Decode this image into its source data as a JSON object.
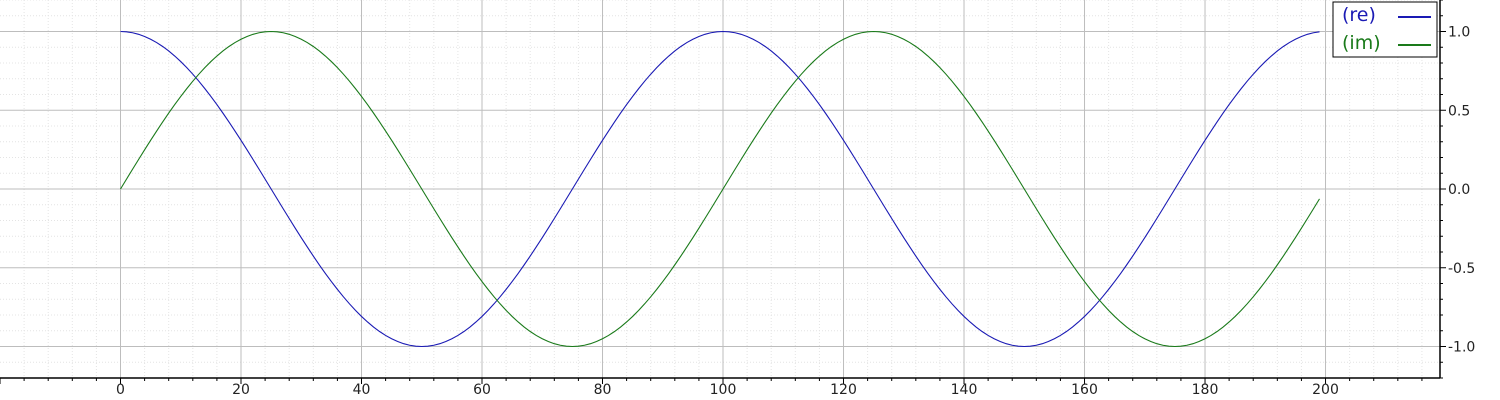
{
  "chart_data": {
    "type": "line",
    "x": {
      "start": 0,
      "end": 199,
      "step": 1
    },
    "series": [
      {
        "name": "(re)",
        "function": "cos(2*pi*x/100)",
        "color": "#1a1ab4"
      },
      {
        "name": "(im)",
        "function": "sin(2*pi*x/100)",
        "color": "#1a7a1a"
      }
    ],
    "xlim": [
      -20,
      219
    ],
    "ylim": [
      -1.2,
      1.2
    ],
    "x_ticks": [
      0,
      20,
      40,
      60,
      80,
      100,
      120,
      140,
      160,
      180,
      200
    ],
    "y_ticks": [
      -1.0,
      -0.5,
      0.0,
      0.5,
      1.0
    ],
    "y_tick_labels": [
      "-1.0",
      "-0.5",
      "0.0",
      "0.5",
      "1.0"
    ],
    "y_axis_side": "right",
    "grid": true,
    "minor_grid": true,
    "legend_position": "top-right",
    "title": "",
    "xlabel": "",
    "ylabel": ""
  },
  "colors": {
    "major_grid": "#bdbdbd",
    "minor_grid": "#e4e4e4",
    "axis": "#000000"
  }
}
